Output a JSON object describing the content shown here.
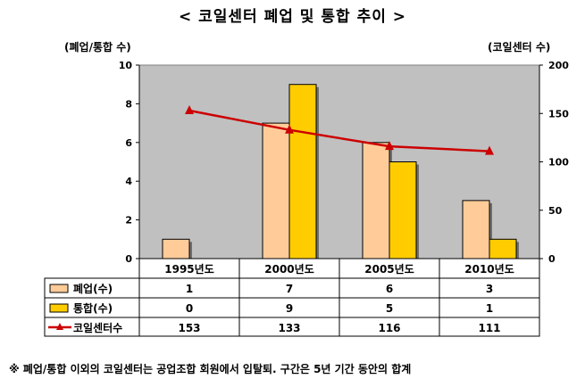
{
  "title": "< 코일센터 폐업 및 통합 추이 >",
  "left_axis_label": "(폐업/통합 수)",
  "right_axis_label": "(코일센터 수)",
  "footnote": "※ 폐업/통합 이외의 코일센터는 공업조합 회원에서 입탈퇴. 구간은 5년 기간 동안의 합계",
  "colors": {
    "plot_bg": "#c0c0c0",
    "closure_fill": "#ffcc99",
    "merger_fill": "#ffcc00",
    "line": "#cc0000"
  },
  "chart_data": {
    "type": "bar",
    "categories": [
      "1995년도",
      "2000년도",
      "2005년도",
      "2010년도"
    ],
    "series": [
      {
        "name": "폐업(수)",
        "type": "bar",
        "axis": "left",
        "values": [
          1,
          7,
          6,
          3
        ]
      },
      {
        "name": "통합(수)",
        "type": "bar",
        "axis": "left",
        "values": [
          0,
          9,
          5,
          1
        ]
      },
      {
        "name": "코일센터수",
        "type": "line",
        "axis": "right",
        "values": [
          153,
          133,
          116,
          111
        ]
      }
    ],
    "left_axis": {
      "min": 0,
      "max": 10,
      "ticks": [
        0,
        2,
        4,
        6,
        8,
        10
      ]
    },
    "right_axis": {
      "min": 0,
      "max": 200,
      "ticks": [
        0,
        50,
        100,
        150,
        200
      ]
    },
    "grid": false,
    "legend": "data-table"
  }
}
